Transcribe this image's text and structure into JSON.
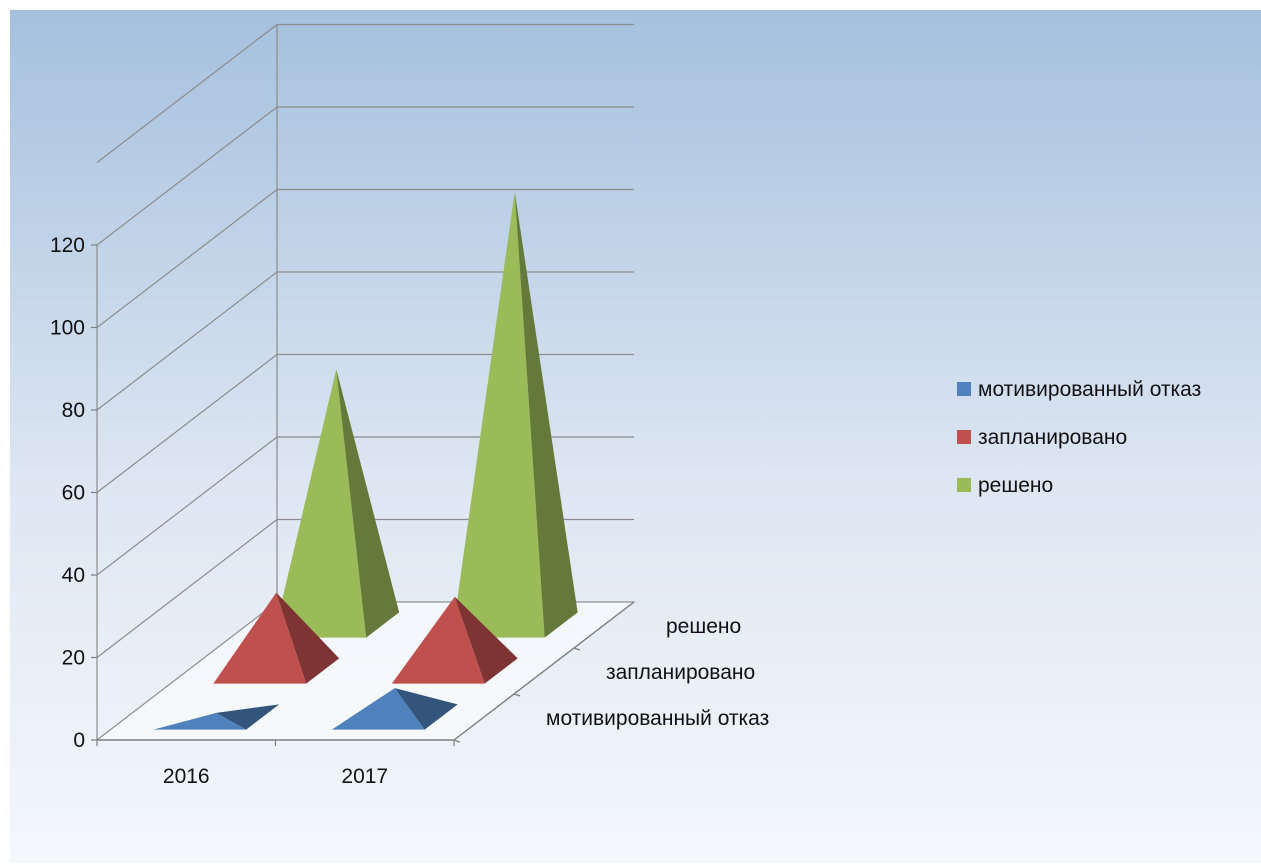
{
  "chart_data": {
    "type": "bar",
    "variant": "3d-pyramid",
    "categories": [
      "2016",
      "2017"
    ],
    "series": [
      {
        "name": "мотивированный отказ",
        "values": [
          1,
          7
        ],
        "color": "#4f81bd"
      },
      {
        "name": "запланировано",
        "values": [
          19,
          18
        ],
        "color": "#c0504d"
      },
      {
        "name": "решено",
        "values": [
          62,
          105
        ],
        "color": "#9bbb59"
      }
    ],
    "depth_labels": [
      "мотивированный отказ",
      "запланировано",
      "решено"
    ],
    "y_ticks": [
      "0",
      "20",
      "40",
      "60",
      "80",
      "100",
      "120"
    ],
    "ylim": [
      0,
      140
    ],
    "grid": true,
    "legend_position": "right",
    "background": {
      "top": "#a5c0de",
      "bottom": "#f4f8fd"
    }
  }
}
